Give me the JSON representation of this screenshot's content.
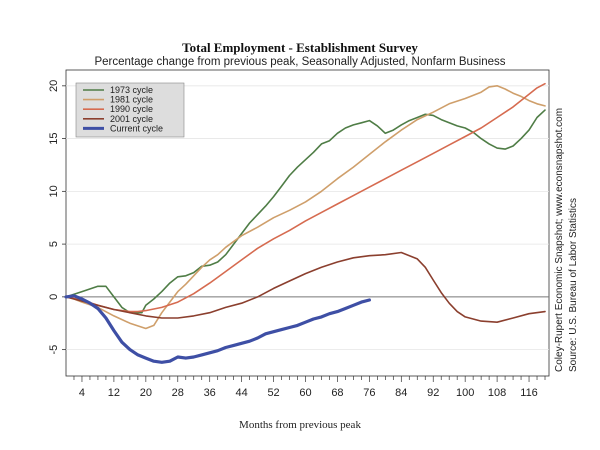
{
  "chart_data": {
    "type": "line",
    "title": "Total Employment - Establishment Survey",
    "subtitle": "Percentage change from previous peak, Seasonally Adjusted, Nonfarm Business",
    "xlabel": "Months from previous peak",
    "ylabel": "",
    "xlim": [
      0,
      121
    ],
    "ylim": [
      -7.5,
      21.5
    ],
    "x_ticks": [
      4,
      12,
      20,
      28,
      36,
      44,
      52,
      60,
      68,
      76,
      84,
      92,
      100,
      108,
      116
    ],
    "y_ticks": [
      -5,
      0,
      5,
      10,
      15,
      20
    ],
    "y_tick_labels": [
      "-5",
      "0",
      "5",
      "10",
      "15",
      "20"
    ],
    "grid": true,
    "reference_line": 0,
    "legend_position": "top-left",
    "notes": [
      "Coley-Rupert Economic Snapshot; www.econsnapshot.com",
      "Source: U.S. Bureau of Labor Statistics"
    ],
    "series": [
      {
        "name": "1973 cycle",
        "color": "#4f7d46",
        "points": [
          [
            0,
            0
          ],
          [
            4,
            0.5
          ],
          [
            8,
            1.0
          ],
          [
            10,
            1.0
          ],
          [
            12,
            0
          ],
          [
            14,
            -1.0
          ],
          [
            16,
            -1.5
          ],
          [
            19,
            -1.5
          ],
          [
            20,
            -0.8
          ],
          [
            22,
            -0.2
          ],
          [
            24,
            0.5
          ],
          [
            26,
            1.3
          ],
          [
            28,
            1.9
          ],
          [
            30,
            2.0
          ],
          [
            32,
            2.3
          ],
          [
            34,
            2.9
          ],
          [
            36,
            3.0
          ],
          [
            38,
            3.3
          ],
          [
            40,
            4.0
          ],
          [
            42,
            5.0
          ],
          [
            44,
            6.0
          ],
          [
            46,
            7.0
          ],
          [
            48,
            7.8
          ],
          [
            50,
            8.6
          ],
          [
            52,
            9.5
          ],
          [
            54,
            10.5
          ],
          [
            56,
            11.5
          ],
          [
            58,
            12.3
          ],
          [
            60,
            13.0
          ],
          [
            62,
            13.7
          ],
          [
            64,
            14.5
          ],
          [
            66,
            14.8
          ],
          [
            68,
            15.5
          ],
          [
            70,
            16.0
          ],
          [
            72,
            16.3
          ],
          [
            74,
            16.5
          ],
          [
            76,
            16.7
          ],
          [
            78,
            16.2
          ],
          [
            80,
            15.5
          ],
          [
            82,
            15.8
          ],
          [
            84,
            16.3
          ],
          [
            86,
            16.7
          ],
          [
            88,
            17.0
          ],
          [
            90,
            17.3
          ],
          [
            92,
            17.2
          ],
          [
            94,
            16.8
          ],
          [
            96,
            16.5
          ],
          [
            98,
            16.2
          ],
          [
            100,
            16.0
          ],
          [
            102,
            15.6
          ],
          [
            104,
            15.0
          ],
          [
            106,
            14.5
          ],
          [
            108,
            14.1
          ],
          [
            110,
            14.0
          ],
          [
            112,
            14.3
          ],
          [
            114,
            15.0
          ],
          [
            116,
            15.8
          ],
          [
            118,
            17.0
          ],
          [
            120,
            17.7
          ]
        ]
      },
      {
        "name": "1981 cycle",
        "color": "#cf9f6b",
        "points": [
          [
            0,
            0
          ],
          [
            2,
            -0.2
          ],
          [
            4,
            -0.5
          ],
          [
            8,
            -1.0
          ],
          [
            12,
            -1.8
          ],
          [
            16,
            -2.5
          ],
          [
            20,
            -3.0
          ],
          [
            22,
            -2.7
          ],
          [
            24,
            -1.5
          ],
          [
            26,
            -0.5
          ],
          [
            28,
            0.5
          ],
          [
            30,
            1.2
          ],
          [
            32,
            2.0
          ],
          [
            34,
            2.8
          ],
          [
            36,
            3.5
          ],
          [
            38,
            4.0
          ],
          [
            40,
            4.7
          ],
          [
            44,
            5.8
          ],
          [
            48,
            6.6
          ],
          [
            52,
            7.5
          ],
          [
            56,
            8.2
          ],
          [
            60,
            9.0
          ],
          [
            64,
            10.0
          ],
          [
            68,
            11.2
          ],
          [
            72,
            12.3
          ],
          [
            76,
            13.5
          ],
          [
            80,
            14.7
          ],
          [
            84,
            15.8
          ],
          [
            88,
            16.8
          ],
          [
            92,
            17.5
          ],
          [
            96,
            18.3
          ],
          [
            100,
            18.8
          ],
          [
            104,
            19.4
          ],
          [
            106,
            19.9
          ],
          [
            108,
            20.0
          ],
          [
            110,
            19.7
          ],
          [
            112,
            19.3
          ],
          [
            114,
            19.0
          ],
          [
            116,
            18.6
          ],
          [
            118,
            18.3
          ],
          [
            120,
            18.1
          ]
        ]
      },
      {
        "name": "1990 cycle",
        "color": "#d66b50",
        "points": [
          [
            0,
            0
          ],
          [
            4,
            -0.3
          ],
          [
            8,
            -0.8
          ],
          [
            12,
            -1.2
          ],
          [
            16,
            -1.4
          ],
          [
            18,
            -1.4
          ],
          [
            20,
            -1.3
          ],
          [
            24,
            -1.0
          ],
          [
            28,
            -0.5
          ],
          [
            32,
            0.3
          ],
          [
            36,
            1.3
          ],
          [
            40,
            2.4
          ],
          [
            44,
            3.5
          ],
          [
            48,
            4.6
          ],
          [
            52,
            5.5
          ],
          [
            56,
            6.3
          ],
          [
            60,
            7.2
          ],
          [
            64,
            8.0
          ],
          [
            68,
            8.8
          ],
          [
            72,
            9.6
          ],
          [
            76,
            10.4
          ],
          [
            80,
            11.2
          ],
          [
            84,
            12.0
          ],
          [
            88,
            12.8
          ],
          [
            92,
            13.6
          ],
          [
            96,
            14.4
          ],
          [
            100,
            15.2
          ],
          [
            104,
            16.0
          ],
          [
            108,
            17.0
          ],
          [
            112,
            18.0
          ],
          [
            116,
            19.2
          ],
          [
            118,
            19.8
          ],
          [
            120,
            20.2
          ]
        ]
      },
      {
        "name": "2001 cycle",
        "color": "#8b3f2e",
        "points": [
          [
            0,
            0
          ],
          [
            4,
            -0.4
          ],
          [
            8,
            -0.8
          ],
          [
            12,
            -1.2
          ],
          [
            16,
            -1.5
          ],
          [
            20,
            -1.8
          ],
          [
            24,
            -2.0
          ],
          [
            28,
            -2.0
          ],
          [
            32,
            -1.8
          ],
          [
            36,
            -1.5
          ],
          [
            40,
            -1.0
          ],
          [
            44,
            -0.6
          ],
          [
            48,
            0
          ],
          [
            52,
            0.8
          ],
          [
            56,
            1.5
          ],
          [
            60,
            2.2
          ],
          [
            64,
            2.8
          ],
          [
            68,
            3.3
          ],
          [
            72,
            3.7
          ],
          [
            76,
            3.9
          ],
          [
            80,
            4.0
          ],
          [
            84,
            4.2
          ],
          [
            88,
            3.6
          ],
          [
            90,
            2.8
          ],
          [
            92,
            1.6
          ],
          [
            94,
            0.4
          ],
          [
            96,
            -0.6
          ],
          [
            98,
            -1.4
          ],
          [
            100,
            -1.9
          ],
          [
            104,
            -2.3
          ],
          [
            108,
            -2.4
          ],
          [
            112,
            -2.0
          ],
          [
            116,
            -1.6
          ],
          [
            120,
            -1.4
          ]
        ]
      },
      {
        "name": "Current cycle",
        "color": "#3e4fa5",
        "points": [
          [
            0,
            0
          ],
          [
            2,
            0.1
          ],
          [
            4,
            -0.2
          ],
          [
            6,
            -0.6
          ],
          [
            8,
            -1.1
          ],
          [
            10,
            -2.0
          ],
          [
            12,
            -3.2
          ],
          [
            14,
            -4.3
          ],
          [
            16,
            -5.0
          ],
          [
            18,
            -5.5
          ],
          [
            20,
            -5.8
          ],
          [
            22,
            -6.1
          ],
          [
            24,
            -6.2
          ],
          [
            26,
            -6.1
          ],
          [
            28,
            -5.7
          ],
          [
            30,
            -5.8
          ],
          [
            32,
            -5.7
          ],
          [
            34,
            -5.5
          ],
          [
            36,
            -5.3
          ],
          [
            38,
            -5.1
          ],
          [
            40,
            -4.8
          ],
          [
            42,
            -4.6
          ],
          [
            44,
            -4.4
          ],
          [
            46,
            -4.2
          ],
          [
            48,
            -3.9
          ],
          [
            50,
            -3.5
          ],
          [
            52,
            -3.3
          ],
          [
            54,
            -3.1
          ],
          [
            56,
            -2.9
          ],
          [
            58,
            -2.7
          ],
          [
            60,
            -2.4
          ],
          [
            62,
            -2.1
          ],
          [
            64,
            -1.9
          ],
          [
            66,
            -1.6
          ],
          [
            68,
            -1.4
          ],
          [
            70,
            -1.1
          ],
          [
            72,
            -0.8
          ],
          [
            74,
            -0.5
          ],
          [
            76,
            -0.3
          ]
        ]
      }
    ]
  }
}
